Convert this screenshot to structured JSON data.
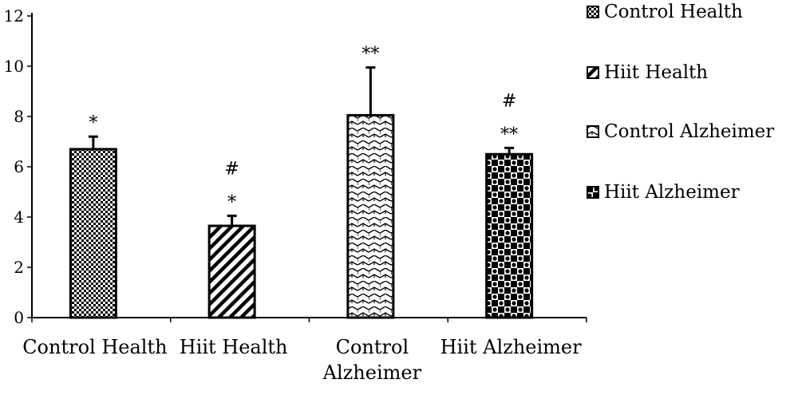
{
  "chart_data": {
    "type": "bar",
    "title": "",
    "xlabel": "",
    "ylabel": "",
    "ylim": [
      0,
      12
    ],
    "yticks": [
      0,
      2,
      4,
      6,
      8,
      10,
      12
    ],
    "categories": [
      "Control Health",
      "Hiit Health",
      "Control Alzheimer",
      "Hiit Alzheimer"
    ],
    "category_lines": [
      [
        "Control Health"
      ],
      [
        "Hiit Health"
      ],
      [
        "Control",
        "Alzheimer"
      ],
      [
        "Hiit Alzheimer"
      ]
    ],
    "series": [
      {
        "values": [
          6.7,
          3.65,
          8.05,
          6.5
        ],
        "error": [
          0.5,
          0.4,
          1.9,
          0.25
        ]
      }
    ],
    "significance": [
      [
        "*"
      ],
      [
        "#",
        "*"
      ],
      [
        "**"
      ],
      [
        "#",
        "**"
      ]
    ],
    "grid": false,
    "legend_position": "top-right",
    "legend": [
      "Control Health",
      "Hiit Health",
      "Control Alzheimer",
      "Hiit Alzheimer"
    ]
  }
}
